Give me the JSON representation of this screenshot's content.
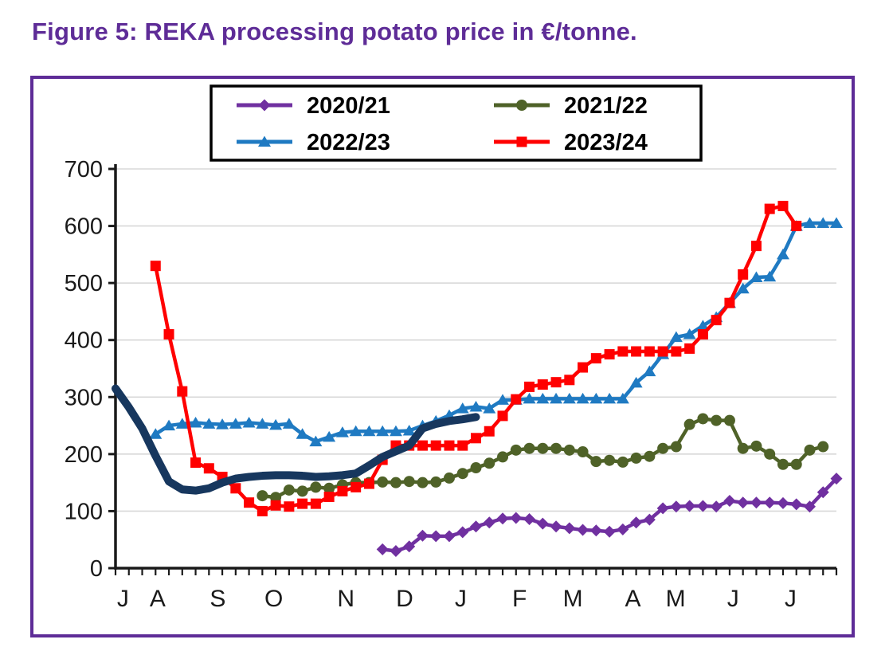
{
  "figure_title": "Figure 5: REKA processing potato price in €/tonne.",
  "figure": {
    "title_color": "#5E2C97",
    "border_color": "#5E2C97",
    "background": "#ffffff"
  },
  "chart_data": {
    "type": "line",
    "title": "Figure 5: REKA processing potato price in €/tonne.",
    "xlabel": "",
    "ylabel": "€/tonne",
    "ylim": [
      0,
      700
    ],
    "y_ticks": [
      0,
      100,
      200,
      300,
      400,
      500,
      600,
      700
    ],
    "grid": "horizontal gridlines only",
    "grid_color": "#D8D8D8",
    "axis_color": "#1A1A1A",
    "legend_position": "top-center, boxed, 2 columns",
    "x_unit": "weeks (July to July season)",
    "x_weeks_total": 54,
    "month_labels": [
      {
        "label": "J",
        "week": 0.2
      },
      {
        "label": "A",
        "week": 2.8
      },
      {
        "label": "S",
        "week": 7.3
      },
      {
        "label": "O",
        "week": 11.5
      },
      {
        "label": "N",
        "week": 16.9
      },
      {
        "label": "D",
        "week": 21.3
      },
      {
        "label": "J",
        "week": 25.5
      },
      {
        "label": "F",
        "week": 29.9
      },
      {
        "label": "M",
        "week": 33.9
      },
      {
        "label": "A",
        "week": 38.4
      },
      {
        "label": "M",
        "week": 41.6
      },
      {
        "label": "J",
        "week": 45.9
      },
      {
        "label": "J",
        "week": 50.2
      }
    ],
    "series": [
      {
        "name": "2020/21",
        "color": "#7030A0",
        "marker": "diamond",
        "line_width": 4.5,
        "in_legend": true,
        "start_week": 20,
        "values": [
          33,
          30,
          38,
          57,
          56,
          56,
          63,
          73,
          80,
          87,
          88,
          86,
          78,
          73,
          70,
          67,
          66,
          64,
          68,
          80,
          85,
          105,
          108,
          109,
          109,
          108,
          118,
          115,
          115,
          115,
          114,
          112,
          108,
          133,
          157
        ]
      },
      {
        "name": "2021/22",
        "color": "#4F6228",
        "marker": "circle",
        "line_width": 4.5,
        "in_legend": true,
        "start_week": 11,
        "values": [
          127,
          124,
          137,
          135,
          142,
          140,
          146,
          150,
          150,
          151,
          150,
          152,
          150,
          151,
          158,
          166,
          176,
          184,
          195,
          207,
          210,
          210,
          210,
          207,
          204,
          187,
          189,
          186,
          193,
          196,
          210,
          213,
          252,
          262,
          259,
          259,
          210,
          214,
          200,
          182,
          182,
          207,
          213
        ]
      },
      {
        "name": "2022/23",
        "color": "#1F7AC2",
        "marker": "triangle",
        "line_width": 4.5,
        "in_legend": true,
        "start_week": 3,
        "values": [
          235,
          250,
          253,
          255,
          253,
          252,
          253,
          255,
          253,
          251,
          253,
          235,
          222,
          230,
          238,
          240,
          240,
          240,
          240,
          241,
          250,
          258,
          268,
          280,
          283,
          280,
          295,
          295,
          297,
          297,
          297,
          297,
          297,
          297,
          297,
          297,
          325,
          345,
          375,
          405,
          410,
          425,
          440,
          465,
          490,
          510,
          511,
          550,
          600,
          605,
          605,
          605
        ]
      },
      {
        "name": "2023/24",
        "color": "#FF0000",
        "marker": "square",
        "line_width": 4.5,
        "in_legend": true,
        "start_week": 3,
        "values": [
          530,
          410,
          310,
          185,
          175,
          160,
          140,
          115,
          100,
          110,
          108,
          113,
          113,
          125,
          135,
          142,
          148,
          190,
          215,
          215,
          215,
          215,
          215,
          215,
          228,
          240,
          267,
          296,
          318,
          322,
          326,
          330,
          352,
          368,
          375,
          380,
          380,
          380,
          380,
          380,
          385,
          410,
          435,
          465,
          515,
          565,
          630,
          635,
          600
        ]
      },
      {
        "name": "",
        "id": "unlabeled-thick-navy-line",
        "color": "#17375E",
        "marker": "none",
        "line_width": 10,
        "in_legend": false,
        "start_week": 0,
        "values": [
          315,
          282,
          245,
          197,
          152,
          138,
          136,
          140,
          150,
          157,
          160,
          162,
          163,
          163,
          162,
          160,
          161,
          163,
          166,
          180,
          195,
          205,
          215,
          245,
          253,
          258,
          261,
          265
        ]
      }
    ],
    "legend_entries": [
      "2020/21",
      "2021/22",
      "2022/23",
      "2023/24"
    ]
  }
}
